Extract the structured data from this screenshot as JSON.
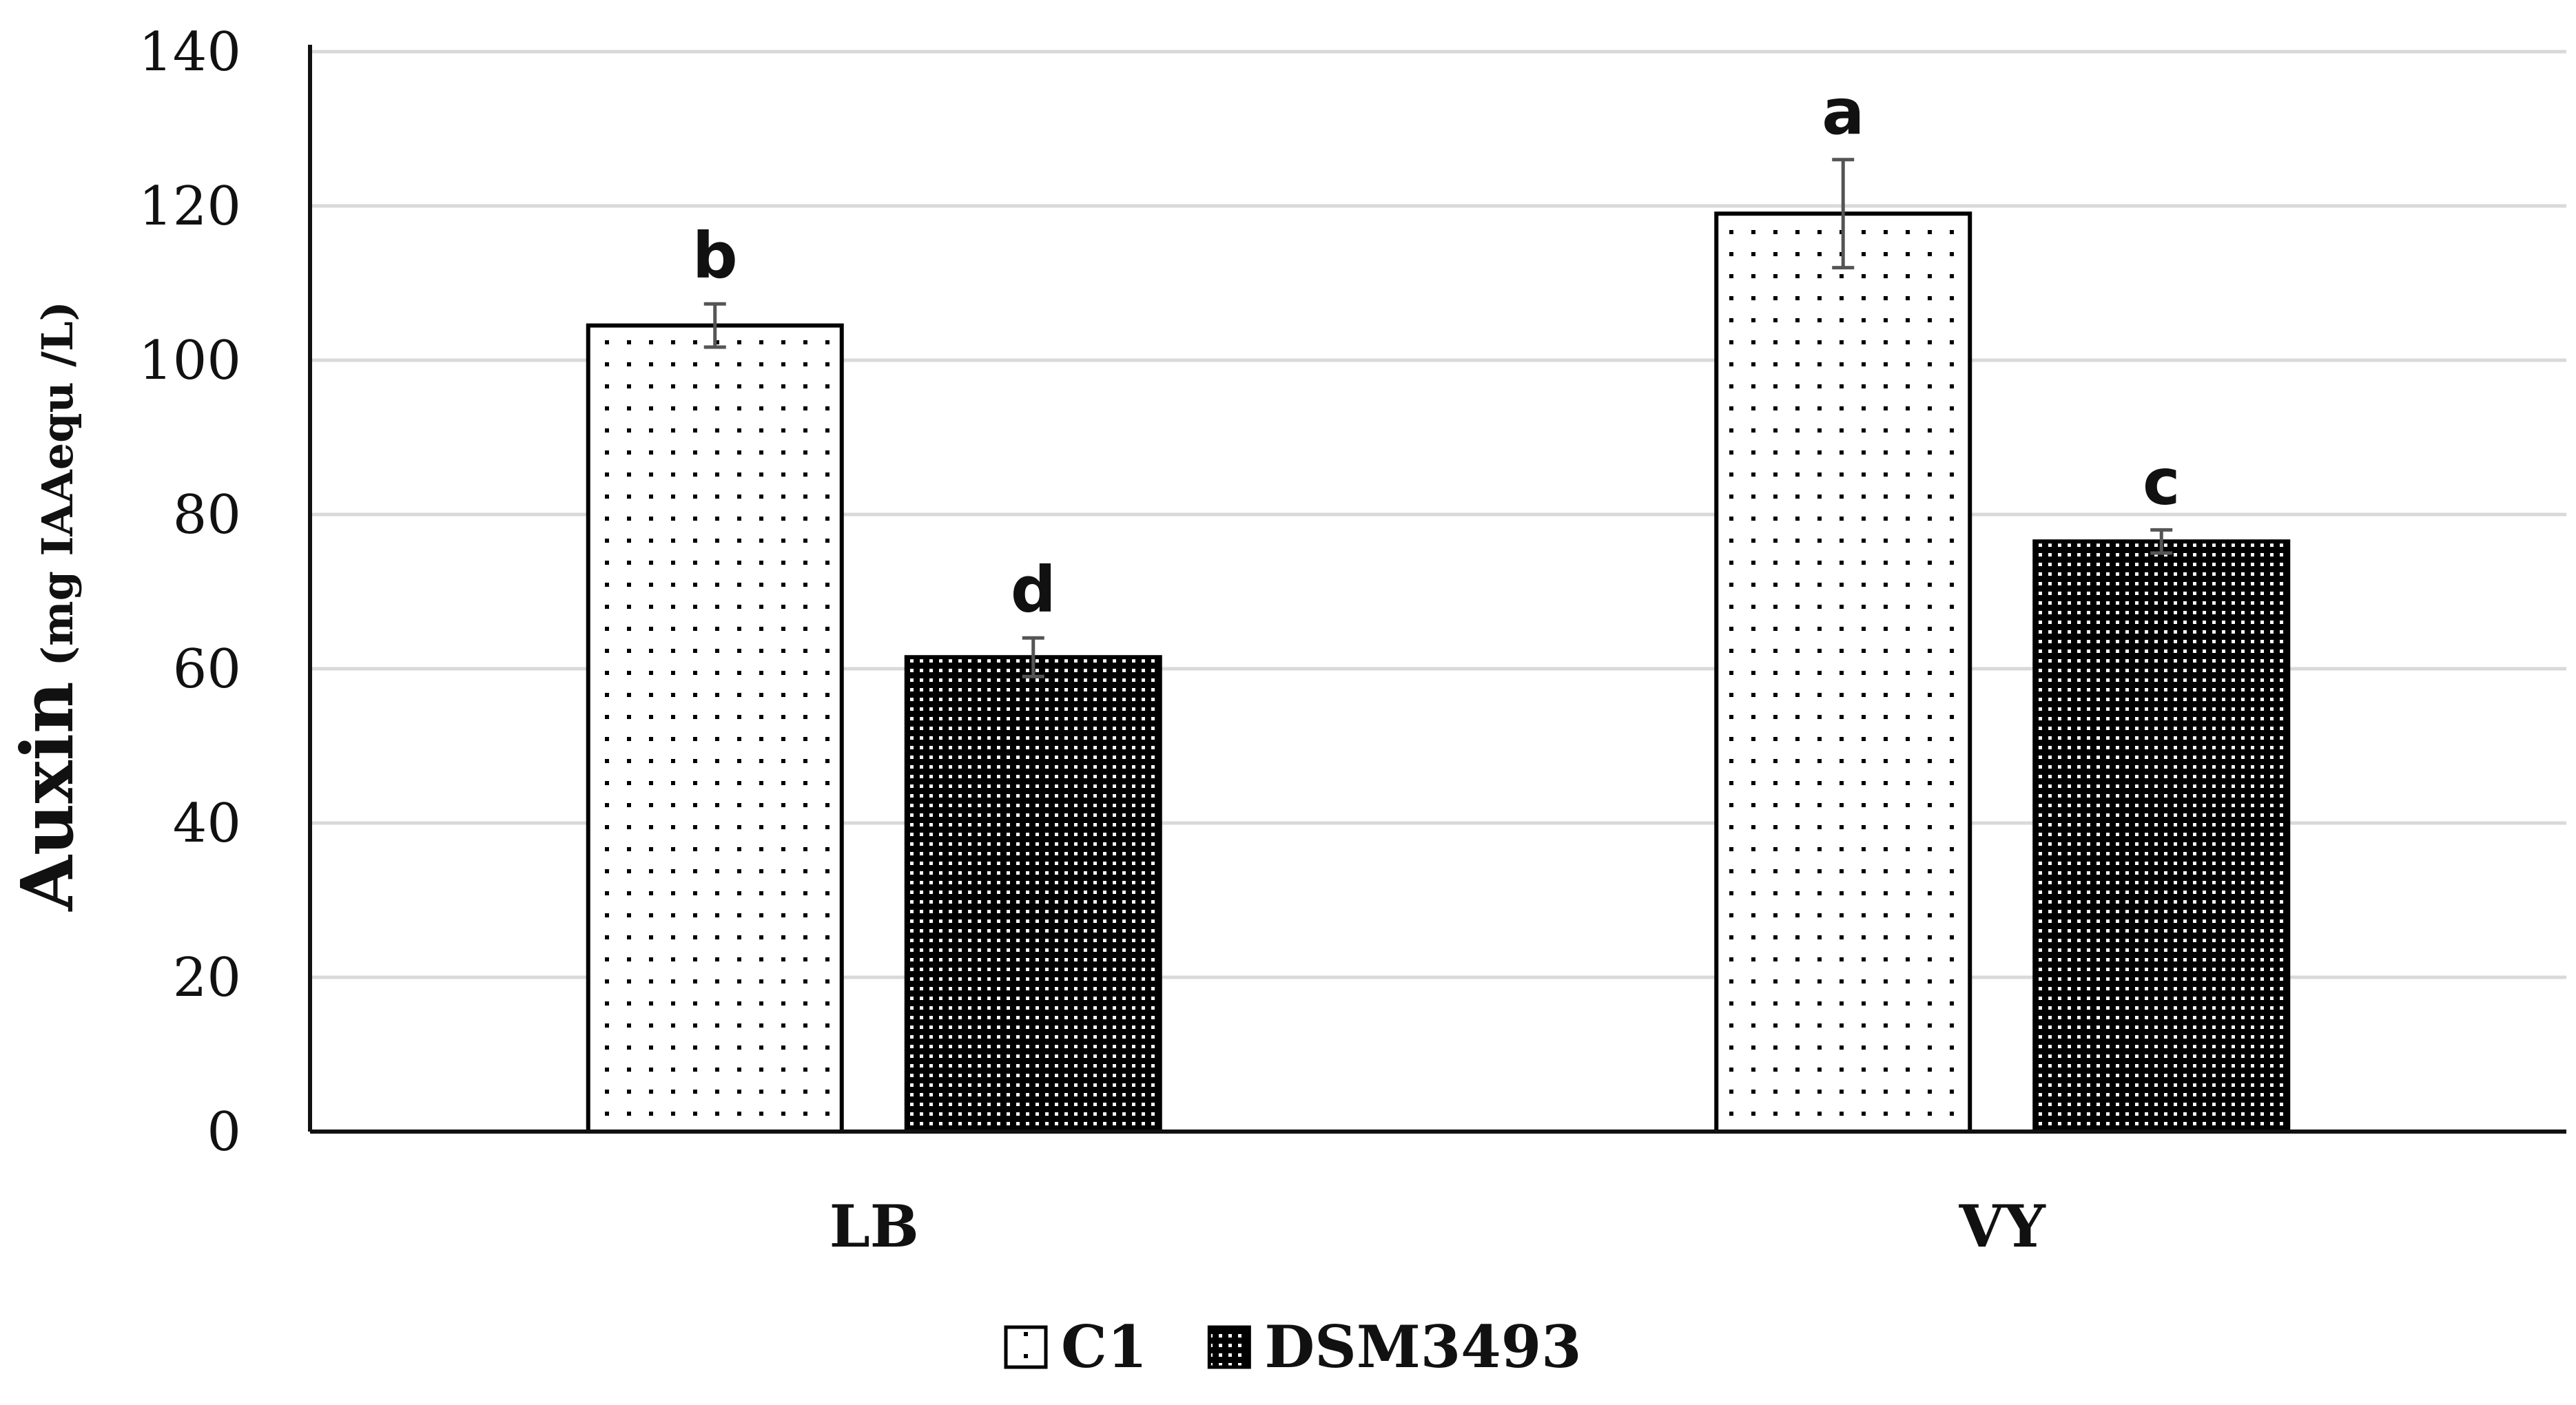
{
  "chart_data": {
    "type": "bar",
    "categories": [
      "LB",
      "VY"
    ],
    "series": [
      {
        "name": "C1",
        "values": [
          104.5,
          119
        ],
        "errors": [
          2.8,
          7
        ],
        "significance": [
          "b",
          "a"
        ],
        "pattern": "sparse-dots"
      },
      {
        "name": "DSM3493",
        "values": [
          61.5,
          76.5
        ],
        "errors": [
          2.5,
          1.5
        ],
        "significance": [
          "d",
          "c"
        ],
        "pattern": "dense-dots"
      }
    ],
    "ylabel_main": "Auxin",
    "ylabel_unit": "(mg IAAequ /L)",
    "xlabel": "",
    "ylim": [
      0,
      140
    ],
    "yticks": [
      0,
      20,
      40,
      60,
      80,
      100,
      120,
      140
    ],
    "grid": true,
    "legend_position": "bottom-center"
  }
}
